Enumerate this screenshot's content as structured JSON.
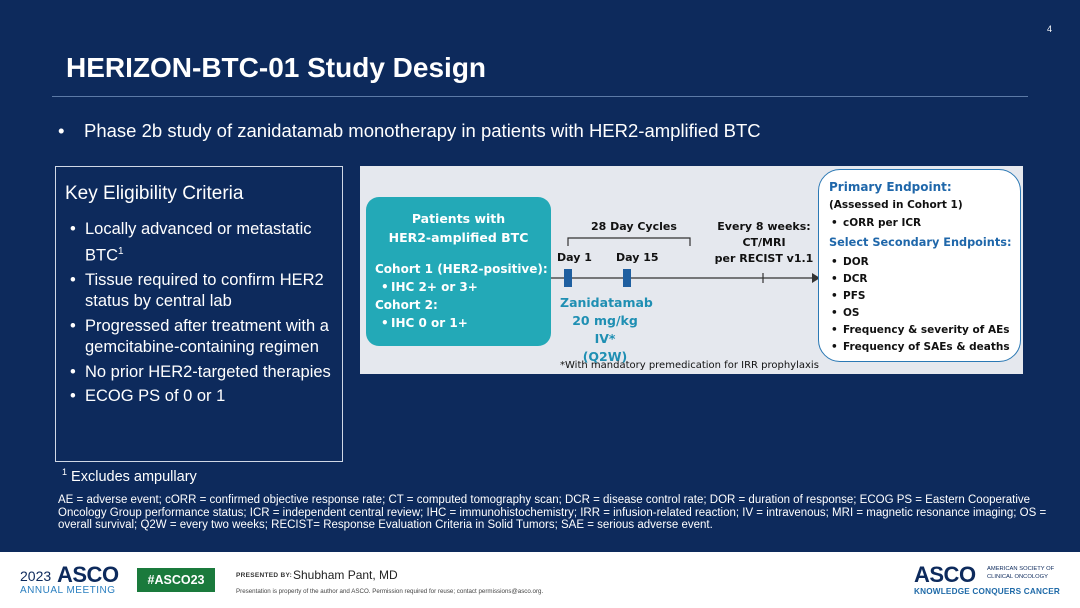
{
  "slide": {
    "page_number": "4",
    "title": "HERIZON-BTC-01 Study Design",
    "main_bullet": "Phase 2b study of zanidatamab monotherapy in patients with HER2-amplified BTC"
  },
  "eligibility": {
    "heading": "Key Eligibility Criteria",
    "items": [
      "Locally advanced or metastatic BTC",
      "Tissue required to confirm HER2 status by central lab",
      "Progressed after treatment with a gemcitabine-containing regimen",
      "No prior HER2-targeted therapies",
      "ECOG PS of 0 or 1"
    ],
    "item0_sup": "1",
    "footnote_mark": "1",
    "footnote_text": "Excludes ampullary"
  },
  "diagram": {
    "patients_title_1": "Patients with",
    "patients_title_2": "HER2-amplified BTC",
    "cohort1": "Cohort 1 (HER2-positive):",
    "cohort1_item": "IHC 2+ or 3+",
    "cohort2": "Cohort 2:",
    "cohort2_item": "IHC 0 or 1+",
    "cycles": "28 Day Cycles",
    "day1": "Day 1",
    "day15": "Day 15",
    "every8_1": "Every 8 weeks:",
    "every8_2": "CT/MRI",
    "every8_3": "per RECIST v1.1",
    "drug_1": "Zanidatamab",
    "drug_2": "20 mg/kg IV*",
    "drug_3": "(Q2W)",
    "premed": "*With mandatory premedication for IRR prophylaxis",
    "primary_heading": "Primary Endpoint:",
    "primary_sub": "(Assessed in Cohort 1)",
    "primary_item": "cORR per ICR",
    "secondary_heading": "Select Secondary Endpoints:",
    "secondary_items": [
      "DOR",
      "DCR",
      "PFS",
      "OS",
      "Frequency & severity of AEs",
      "Frequency of SAEs & deaths"
    ],
    "colors": {
      "patients_box": "#23a9b7",
      "endpoint_heading": "#1f67aa",
      "drug": "#1f8fb3",
      "marker": "#1f5fa0"
    }
  },
  "abbreviations": "AE = adverse event; cORR = confirmed objective response rate; CT = computed tomography scan; DCR = disease control rate; DOR = duration of response; ECOG PS = Eastern Cooperative Oncology Group performance status; ICR = independent central review; IHC = immunohistochemistry; IRR = infusion-related reaction; IV = intravenous; MRI = magnetic resonance imaging; OS = overall survival; Q2W = every two weeks; RECIST= Response Evaluation Criteria in Solid Tumors; SAE = serious adverse event.",
  "footer": {
    "year": "2023",
    "asco": "ASCO",
    "meeting": "ANNUAL MEETING",
    "hashtag": "#ASCO23",
    "presented_by_label": "PRESENTED BY:",
    "presenter": "Shubham Pant, MD",
    "notice": "Presentation is property of the author and ASCO. Permission required for reuse; contact permissions@asco.org.",
    "asco_right": "ASCO",
    "society": "AMERICAN SOCIETY OF CLINICAL ONCOLOGY",
    "tagline": "KNOWLEDGE CONQUERS CANCER",
    "colors": {
      "navy": "#0d2a5c",
      "hashtag_bg": "#1a7a3c"
    }
  }
}
